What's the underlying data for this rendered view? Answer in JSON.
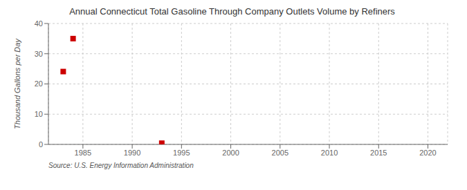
{
  "chart_data": {
    "type": "scatter",
    "title": "Annual Connecticut Total Gasoline Through Company Outlets Volume by Refiners",
    "ylabel": "Thousand Gallons per Day",
    "annotations": [
      "Source: U.S. Energy Information Administration"
    ],
    "x": [
      1983,
      1984,
      1993
    ],
    "values": [
      24.1,
      35.0,
      0.4
    ],
    "color": "#cc0000",
    "marker": "square",
    "xlim": [
      1981.5,
      2022
    ],
    "ylim": [
      0,
      40
    ],
    "xticks": [
      1985,
      1990,
      1995,
      2000,
      2005,
      2010,
      2015,
      2020
    ],
    "yticks": [
      0,
      10,
      20,
      30,
      40
    ],
    "grid": true
  }
}
